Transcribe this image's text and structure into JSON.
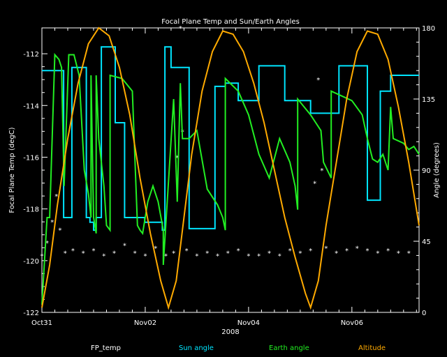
{
  "chart_data": {
    "type": "line",
    "title": "Focal Plane Temp and Sun/Earth Angles",
    "xlabel": "2008",
    "ylabel_left": "Focal Plane Temp (degC)",
    "ylabel_right": "Angle (degrees)",
    "x_unit": "days (Oct31 = 0)",
    "xlim": [
      0,
      7.3
    ],
    "ylim_left": [
      -122,
      -111
    ],
    "ylim_right": [
      0,
      180
    ],
    "x_ticks": [
      {
        "x": 0,
        "label": "Oct31"
      },
      {
        "x": 2,
        "label": "Nov02"
      },
      {
        "x": 4,
        "label": "Nov04"
      },
      {
        "x": 6,
        "label": "Nov06"
      }
    ],
    "y_ticks_left": [
      -122,
      -120,
      -118,
      -116,
      -114,
      -112
    ],
    "y_ticks_right": [
      0,
      45,
      90,
      135,
      180
    ],
    "legend_position": "bottom",
    "series": [
      {
        "name": "FP_temp",
        "color": "#ffffff",
        "axis": "left",
        "marker": "asterisk",
        "x": [
          0.0,
          0.1,
          0.2,
          0.28,
          0.35,
          0.45,
          0.6,
          0.8,
          1.0,
          1.2,
          1.4,
          1.6,
          1.8,
          2.0,
          2.2,
          2.4,
          2.55,
          2.62,
          2.68,
          2.72,
          2.8,
          3.0,
          3.2,
          3.4,
          3.6,
          3.8,
          4.0,
          4.2,
          4.4,
          4.6,
          4.8,
          5.0,
          5.2,
          5.28,
          5.35,
          5.42,
          5.5,
          5.7,
          5.9,
          6.1,
          6.3,
          6.5,
          6.7,
          6.9,
          7.1
        ],
        "y": [
          -119.8,
          -119.3,
          -118.5,
          -117.5,
          -118.8,
          -119.7,
          -119.6,
          -119.7,
          -119.6,
          -119.8,
          -119.7,
          -119.4,
          -119.7,
          -119.8,
          -119.5,
          -119.8,
          -119.7,
          -116.0,
          -111.0,
          -115.0,
          -119.6,
          -119.8,
          -119.7,
          -119.8,
          -119.7,
          -119.6,
          -119.8,
          -119.8,
          -119.7,
          -119.8,
          -119.6,
          -119.7,
          -119.6,
          -117.0,
          -113.0,
          -116.5,
          -119.5,
          -119.7,
          -119.6,
          -119.5,
          -119.6,
          -119.7,
          -119.6,
          -119.7,
          -119.7
        ]
      },
      {
        "name": "Sun angle",
        "color": "#00e5ff",
        "axis": "right",
        "x": [
          0.0,
          0.42,
          0.42,
          0.58,
          0.58,
          0.86,
          0.86,
          0.93,
          0.93,
          1.0,
          1.0,
          1.05,
          1.05,
          1.15,
          1.15,
          1.42,
          1.42,
          1.6,
          1.6,
          1.99,
          1.99,
          2.33,
          2.33,
          2.38,
          2.38,
          2.5,
          2.5,
          2.85,
          2.85,
          3.1,
          3.1,
          3.35,
          3.35,
          3.55,
          3.55,
          3.8,
          3.8,
          4.2,
          4.2,
          4.7,
          4.7,
          5.2,
          5.2,
          5.75,
          5.75,
          6.3,
          6.3,
          6.55,
          6.55,
          6.75,
          6.75,
          7.3
        ],
        "y": [
          153,
          153,
          60,
          60,
          155,
          155,
          60,
          60,
          57,
          57,
          52,
          52,
          60,
          60,
          168,
          168,
          120,
          120,
          60,
          60,
          57,
          57,
          52,
          52,
          168,
          168,
          155,
          155,
          53,
          53,
          53,
          53,
          143,
          143,
          145,
          145,
          134,
          134,
          156,
          156,
          134,
          134,
          126,
          126,
          156,
          156,
          71,
          71,
          140,
          140,
          150,
          150
        ]
      },
      {
        "name": "Earth angle",
        "color": "#22ee22",
        "axis": "right",
        "x": [
          0.0,
          0.1,
          0.15,
          0.25,
          0.33,
          0.38,
          0.43,
          0.43,
          0.52,
          0.62,
          0.72,
          0.82,
          0.9,
          0.95,
          0.95,
          1.0,
          1.05,
          1.05,
          1.1,
          1.2,
          1.25,
          1.32,
          1.32,
          1.55,
          1.75,
          1.85,
          1.9,
          1.95,
          2.05,
          2.15,
          2.25,
          2.35,
          2.35,
          2.55,
          2.62,
          2.68,
          2.72,
          2.85,
          3.0,
          3.2,
          3.4,
          3.5,
          3.55,
          3.55,
          3.8,
          4.0,
          4.2,
          4.4,
          4.6,
          4.8,
          4.9,
          4.95,
          4.95,
          5.2,
          5.4,
          5.45,
          5.6,
          5.6,
          6.0,
          6.2,
          6.3,
          6.4,
          6.5,
          6.6,
          6.7,
          6.75,
          6.8,
          7.0,
          7.1,
          7.2,
          7.3
        ],
        "y": [
          5,
          60,
          60,
          163,
          160,
          155,
          80,
          80,
          163,
          163,
          150,
          90,
          75,
          60,
          150,
          60,
          50,
          150,
          110,
          80,
          55,
          52,
          150,
          148,
          140,
          55,
          52,
          50,
          70,
          80,
          70,
          52,
          30,
          135,
          70,
          145,
          110,
          110,
          115,
          78,
          68,
          60,
          52,
          148,
          140,
          125,
          100,
          85,
          110,
          95,
          80,
          65,
          135,
          125,
          115,
          95,
          85,
          140,
          134,
          125,
          110,
          97,
          95,
          100,
          90,
          130,
          110,
          107,
          103,
          105,
          100
        ]
      },
      {
        "name": "Altitude",
        "color": "#ffaa00",
        "axis": "right",
        "x": [
          0.0,
          0.15,
          0.3,
          0.5,
          0.7,
          0.9,
          1.1,
          1.3,
          1.5,
          1.7,
          1.9,
          2.1,
          2.3,
          2.45,
          2.6,
          2.75,
          2.9,
          3.1,
          3.3,
          3.5,
          3.7,
          3.9,
          4.1,
          4.3,
          4.5,
          4.7,
          4.9,
          5.1,
          5.2,
          5.35,
          5.5,
          5.7,
          5.9,
          6.1,
          6.3,
          6.5,
          6.7,
          6.9,
          7.1,
          7.3
        ],
        "y": [
          3,
          30,
          68,
          110,
          145,
          170,
          180,
          175,
          155,
          125,
          85,
          50,
          20,
          3,
          20,
          60,
          100,
          140,
          165,
          178,
          176,
          165,
          145,
          120,
          90,
          60,
          35,
          12,
          3,
          20,
          55,
          95,
          135,
          165,
          178,
          176,
          160,
          130,
          95,
          55
        ]
      }
    ]
  }
}
